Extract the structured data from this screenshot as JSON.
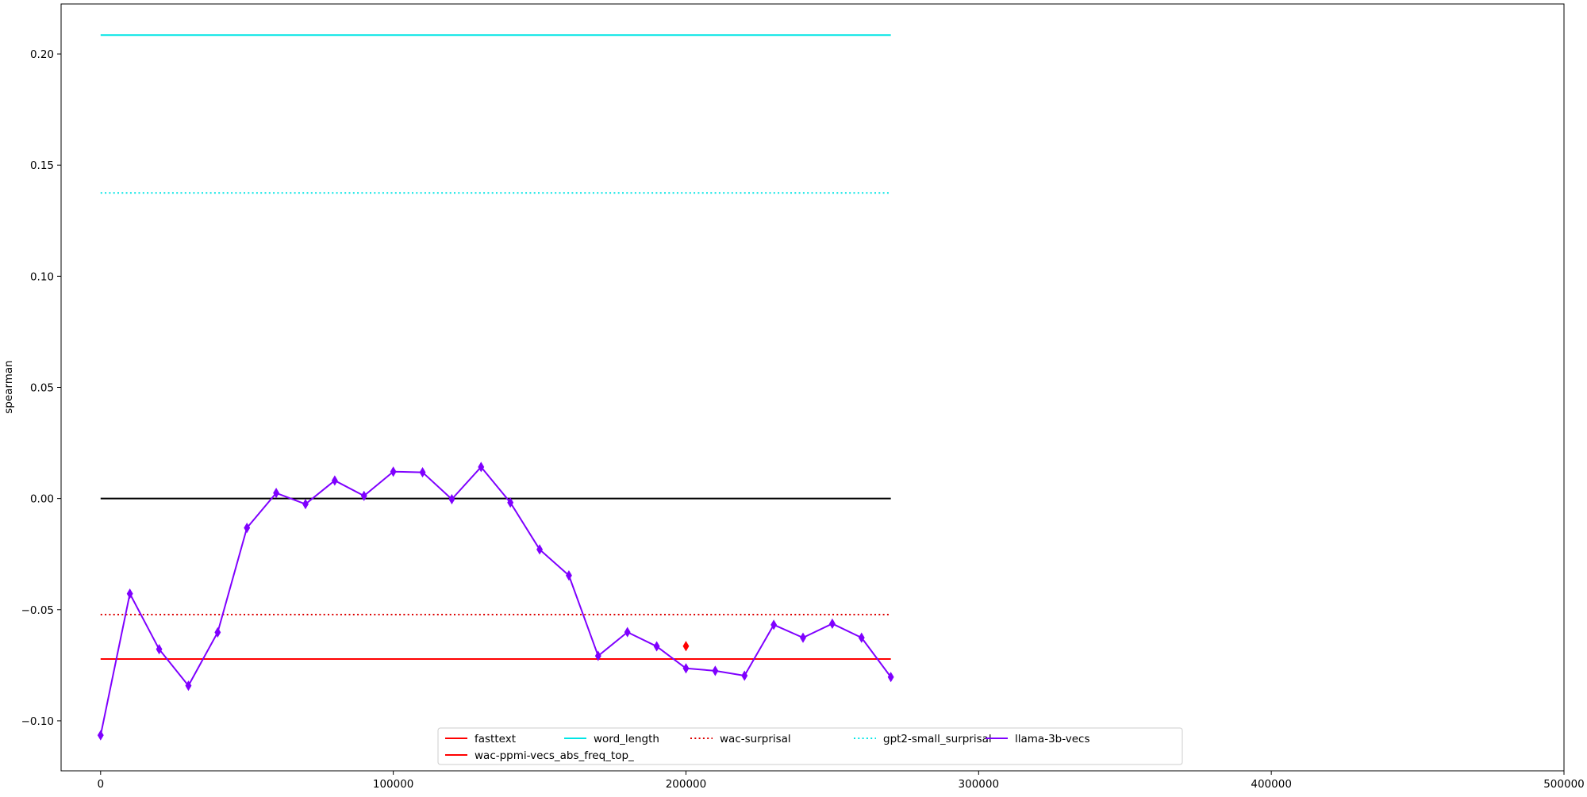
{
  "chart_data": {
    "type": "line",
    "title": "",
    "xlabel": "",
    "ylabel": "spearman",
    "xlim": [
      -13500,
      500000
    ],
    "ylim": [
      -0.1225,
      0.2225
    ],
    "xticks": [
      0,
      100000,
      200000,
      300000,
      400000,
      500000
    ],
    "xtick_labels": [
      "0",
      "100000",
      "200000",
      "300000",
      "400000",
      "500000"
    ],
    "yticks": [
      -0.1,
      -0.05,
      0.0,
      0.05,
      0.1,
      0.15,
      0.2
    ],
    "ytick_labels": [
      "−0.10",
      "−0.05",
      "0.00",
      "0.05",
      "0.10",
      "0.15",
      "0.20"
    ],
    "grid": false,
    "legend_position": "lower-center",
    "zero_line": {
      "x": [
        0,
        270000
      ],
      "y": 0.0,
      "color": "#000000"
    },
    "series": [
      {
        "name": "fasttext",
        "kind": "hline",
        "x": [
          0,
          270000
        ],
        "y": -0.0722,
        "color": "#ff0000",
        "style": "solid"
      },
      {
        "name": "word_length",
        "kind": "hline",
        "x": [
          0,
          270000
        ],
        "y": 0.2085,
        "color": "#00e5e5",
        "style": "solid"
      },
      {
        "name": "wac-surprisal",
        "kind": "hline",
        "x": [
          0,
          270000
        ],
        "y": -0.0522,
        "color": "#dd0000",
        "style": "dotted"
      },
      {
        "name": "gpt2-small_surprisal",
        "kind": "hline",
        "x": [
          0,
          270000
        ],
        "y": 0.1375,
        "color": "#00e5e5",
        "style": "dotted"
      },
      {
        "name": "llama-3b-vecs",
        "kind": "line",
        "color": "#7f00ff",
        "style": "solid",
        "marker": "diamond",
        "x": [
          0,
          10000,
          20000,
          30000,
          40000,
          50000,
          60000,
          70000,
          80000,
          90000,
          100000,
          110000,
          120000,
          130000,
          140000,
          150000,
          160000,
          170000,
          180000,
          190000,
          200000,
          210000,
          220000,
          230000,
          240000,
          250000,
          260000,
          270000
        ],
        "y": [
          -0.1065,
          -0.0428,
          -0.0678,
          -0.0842,
          -0.0602,
          -0.0132,
          0.0025,
          -0.0025,
          0.0081,
          0.0012,
          0.0121,
          0.0118,
          -0.0003,
          0.0142,
          -0.0018,
          -0.0229,
          -0.0346,
          -0.0708,
          -0.0601,
          -0.0665,
          -0.0764,
          -0.0775,
          -0.0797,
          -0.0568,
          -0.0626,
          -0.0563,
          -0.0626,
          -0.0803
        ]
      },
      {
        "name": "wac-ppmi-vecs_abs_freq_top_",
        "kind": "point",
        "color": "#ff0000",
        "marker": "diamond",
        "x": [
          200000
        ],
        "y": [
          -0.0664
        ]
      }
    ]
  }
}
